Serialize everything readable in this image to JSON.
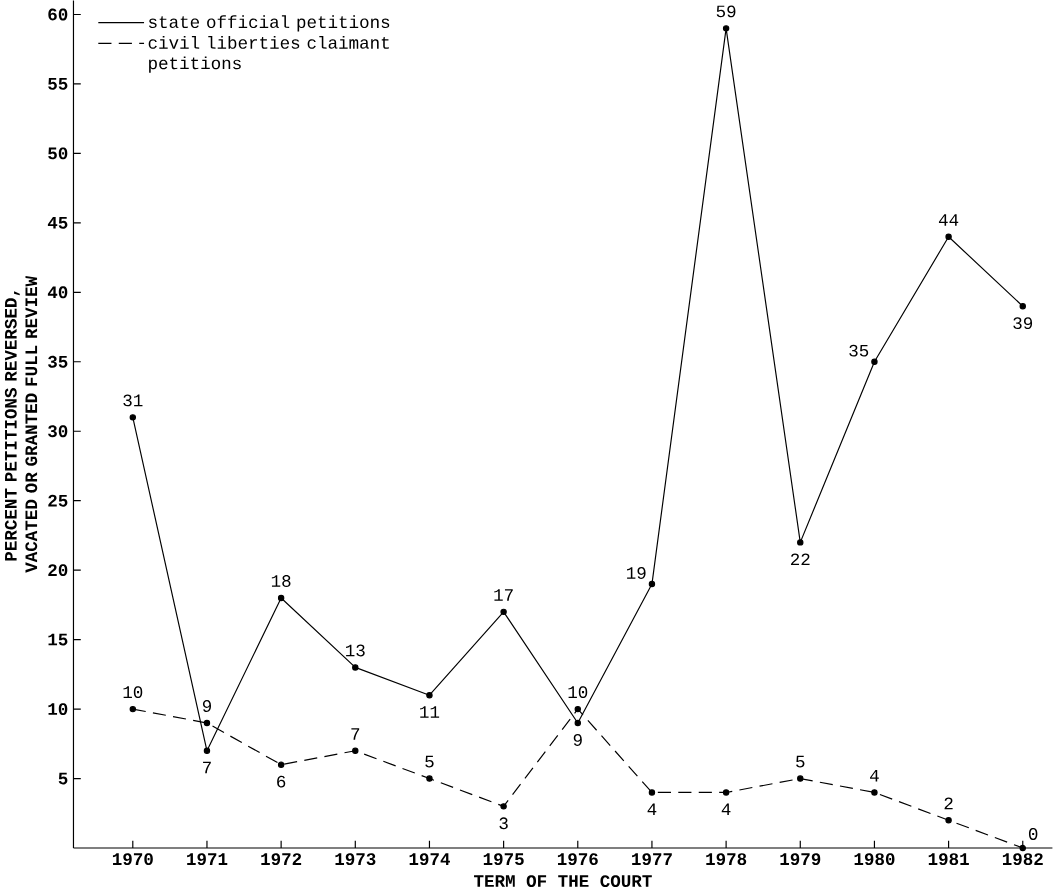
{
  "chart_data": {
    "type": "line",
    "xlabel": "TERM OF THE COURT",
    "ylabel": "PERCENT PETITIONS REVERSED, VACATED OR GRANTED FULL REVIEW",
    "categories": [
      "1970",
      "1971",
      "1972",
      "1973",
      "1974",
      "1975",
      "1976",
      "1977",
      "1978",
      "1979",
      "1980",
      "1981",
      "1982"
    ],
    "series": [
      {
        "name": "state official petitions",
        "color": "#000000",
        "line_style": "solid",
        "values": [
          31,
          7,
          18,
          13,
          11,
          17,
          9,
          19,
          59,
          22,
          35,
          44,
          39
        ]
      },
      {
        "name": "civil liberties claimant petitions",
        "color": "#000000",
        "line_style": "dashed",
        "values": [
          10,
          9,
          6,
          7,
          5,
          3,
          10,
          4,
          4,
          5,
          4,
          2,
          0
        ]
      }
    ],
    "ylim": [
      0,
      61
    ],
    "yticks": [
      5,
      10,
      15,
      20,
      25,
      30,
      35,
      40,
      45,
      50,
      55,
      60
    ],
    "data_labels": true,
    "legend": "top left",
    "marker": "circle",
    "grid": false
  }
}
